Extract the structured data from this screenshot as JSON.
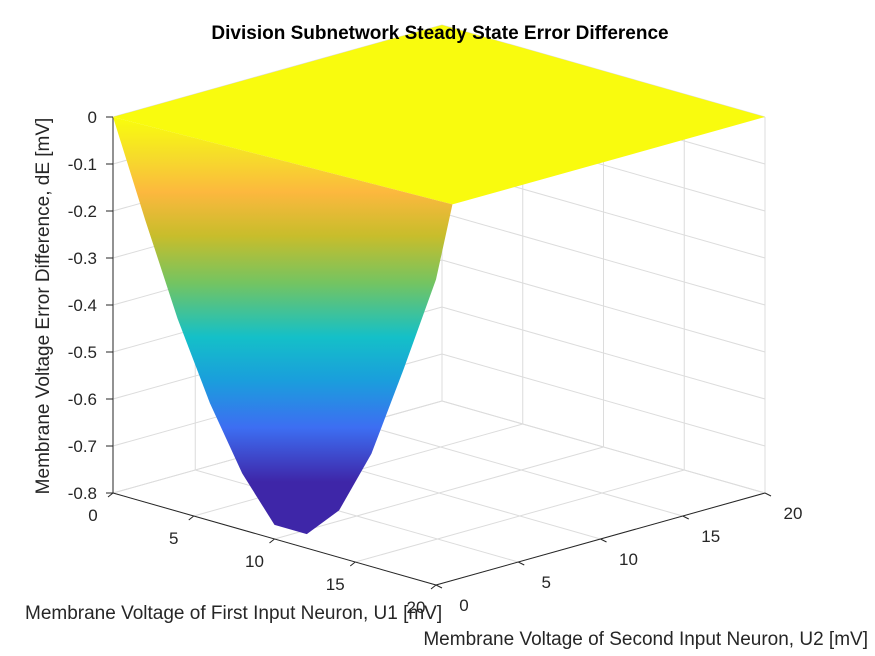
{
  "chart_data": {
    "type": "surface",
    "title": "Division Subnetwork Steady State Error Difference",
    "xlabel": "Membrane Voltage of First Input Neuron, U1 [mV]",
    "ylabel": "Membrane Voltage of Second Input Neuron, U2 [mV]",
    "zlabel": "Membrane Voltage Error Difference, dE [mV]",
    "xlim": [
      0,
      20
    ],
    "ylim": [
      0,
      20
    ],
    "zlim": [
      -0.8,
      0
    ],
    "x_ticks": [
      "0",
      "5",
      "10",
      "15",
      "20"
    ],
    "y_ticks": [
      "0",
      "5",
      "10",
      "15",
      "20"
    ],
    "z_ticks": [
      "0",
      "-0.1",
      "-0.2",
      "-0.3",
      "-0.4",
      "-0.5",
      "-0.6",
      "-0.7",
      "-0.8"
    ],
    "grid": true,
    "colormap": "parula",
    "surface_profile": {
      "description_units": "dE along U1 at U2 = 0; surface is 0 for U2 >= 1",
      "u1": [
        0,
        2,
        4,
        6,
        8,
        10,
        12,
        14,
        16,
        18,
        20
      ],
      "de_at_u2_0": [
        0,
        -0.2,
        -0.39,
        -0.55,
        -0.68,
        -0.77,
        -0.77,
        -0.7,
        -0.56,
        -0.36,
        -0.15
      ],
      "de_at_u2_ge_1": 0
    }
  },
  "colors": {
    "surface_low": "#3e26a8",
    "surface_mid": "#14c0c8",
    "surface_high": "#f9fb0e",
    "grid": "#dcdcdc",
    "axis": "#262626"
  }
}
